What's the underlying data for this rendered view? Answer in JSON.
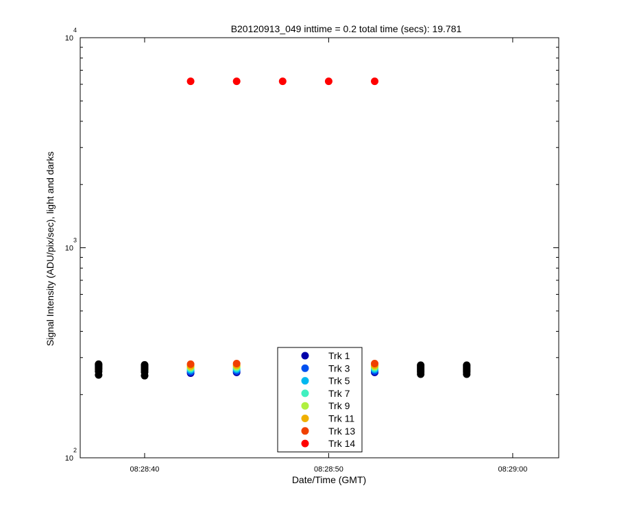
{
  "chart_data": {
    "type": "scatter",
    "title": "B20120913_049 inttime = 0.2 total time (secs): 19.781",
    "xlabel": "Date/Time (GMT)",
    "ylabel": "Signal Intensity (ADU/pix/sec), light and darks",
    "x_scale": "time",
    "y_scale": "log",
    "xlim": [
      "08:28:36.5",
      "08:29:02.5"
    ],
    "ylim": [
      100,
      10000
    ],
    "x_ticks": [
      "08:28:40",
      "08:28:50",
      "08:29:00"
    ],
    "y_tick_mantissas": [
      "10",
      "10",
      "10"
    ],
    "y_tick_exponents": [
      "2",
      "3",
      "4"
    ],
    "grid": false,
    "legend_position": "lower-center",
    "series": [
      {
        "name": "Trk 1",
        "color": "#0000aa",
        "x": [
          "08:28:42.5",
          "08:28:45.0",
          "08:28:52.5"
        ],
        "y": [
          253,
          255,
          255
        ]
      },
      {
        "name": "Trk 3",
        "color": "#0050f0",
        "x": [
          "08:28:42.5",
          "08:28:45.0",
          "08:28:52.5"
        ],
        "y": [
          257,
          259,
          259
        ]
      },
      {
        "name": "Trk 5",
        "color": "#00b8f0",
        "x": [
          "08:28:42.5",
          "08:28:45.0",
          "08:28:52.5"
        ],
        "y": [
          262,
          264,
          264
        ]
      },
      {
        "name": "Trk 7",
        "color": "#40f0c0",
        "x": [
          "08:28:42.5",
          "08:28:45.0",
          "08:28:52.5"
        ],
        "y": [
          266,
          268,
          268
        ]
      },
      {
        "name": "Trk 9",
        "color": "#b0f040",
        "x": [
          "08:28:42.5",
          "08:28:45.0",
          "08:28:52.5"
        ],
        "y": [
          270,
          272,
          272
        ]
      },
      {
        "name": "Trk 11",
        "color": "#f0b000",
        "x": [
          "08:28:42.5",
          "08:28:45.0",
          "08:28:52.5"
        ],
        "y": [
          274,
          276,
          276
        ]
      },
      {
        "name": "Trk 13",
        "color": "#f04000",
        "x": [
          "08:28:42.5",
          "08:28:45.0",
          "08:28:52.5"
        ],
        "y": [
          279,
          281,
          281
        ]
      },
      {
        "name": "Trk 14",
        "color": "#ff0000",
        "x": [
          "08:28:42.5",
          "08:28:45.0",
          "08:28:47.5",
          "08:28:50.0",
          "08:28:52.5"
        ],
        "y": [
          6200,
          6200,
          6200,
          6200,
          6200
        ]
      },
      {
        "color": "#000000",
        "x": [
          "08:28:37.5",
          "08:28:37.5",
          "08:28:37.5",
          "08:28:37.5",
          "08:28:37.5",
          "08:28:37.5",
          "08:28:37.5",
          "08:28:40.0",
          "08:28:40.0",
          "08:28:40.0",
          "08:28:40.0",
          "08:28:40.0",
          "08:28:40.0",
          "08:28:40.0",
          "08:28:55.0",
          "08:28:55.0",
          "08:28:55.0",
          "08:28:55.0",
          "08:28:55.0",
          "08:28:55.0",
          "08:28:55.0",
          "08:28:57.5",
          "08:28:57.5",
          "08:28:57.5",
          "08:28:57.5",
          "08:28:57.5",
          "08:28:57.5",
          "08:28:57.5"
        ],
        "y": [
          248,
          258,
          264,
          268,
          272,
          276,
          279,
          246,
          256,
          262,
          266,
          270,
          274,
          277,
          250,
          256,
          260,
          264,
          268,
          272,
          276,
          250,
          256,
          260,
          264,
          268,
          272,
          276
        ]
      }
    ]
  }
}
